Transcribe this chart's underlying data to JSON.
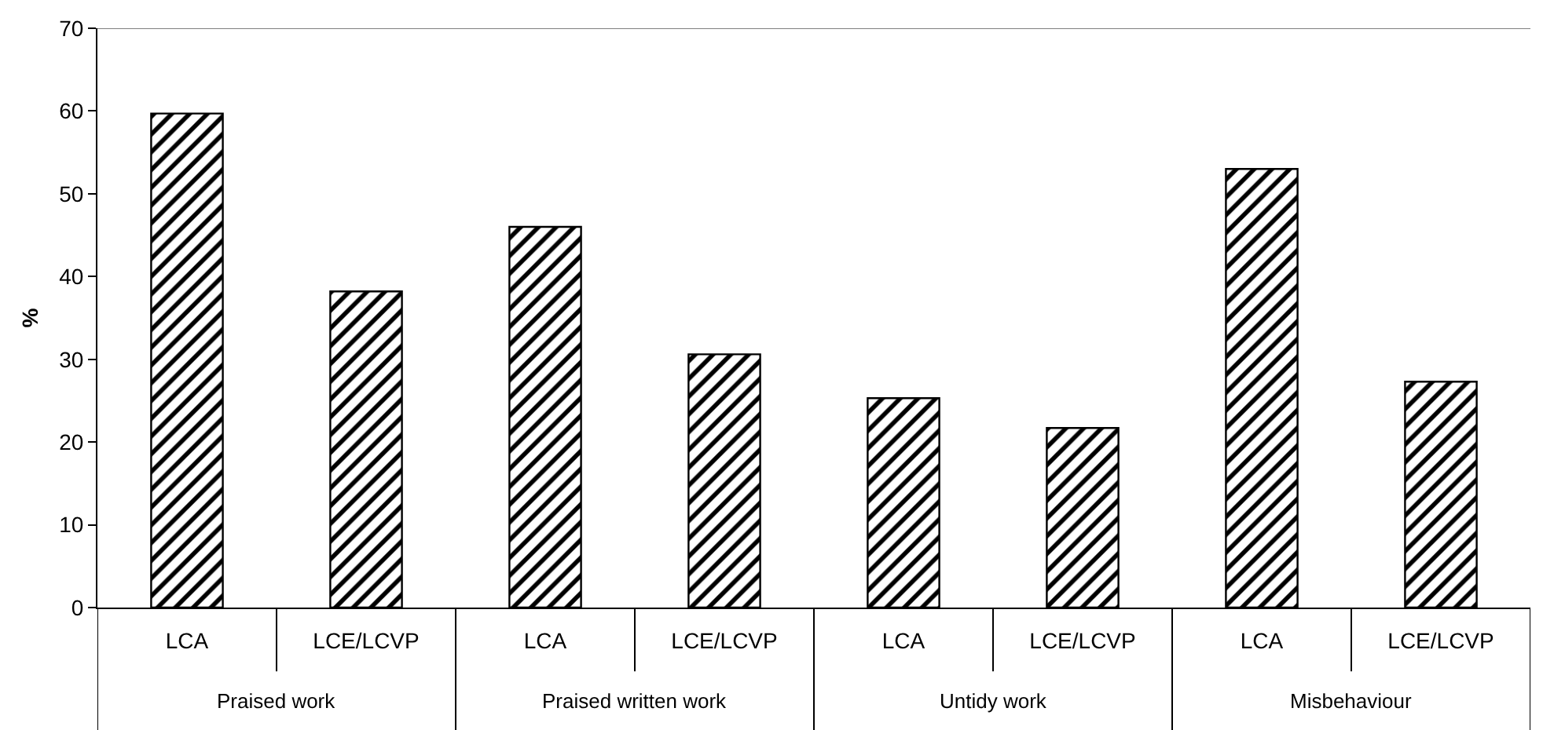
{
  "chart_data": {
    "type": "bar",
    "ylabel": "%",
    "categories": [
      "LCA",
      "LCE/LCVP",
      "LCA",
      "LCE/LCVP",
      "LCA",
      "LCE/LCVP",
      "LCA",
      "LCE/LCVP"
    ],
    "values": [
      59.7,
      38.2,
      46.0,
      30.6,
      25.3,
      21.7,
      53.0,
      27.3
    ],
    "color": "#000000",
    "ylim": [
      0,
      70
    ],
    "yticks": [
      0,
      10,
      20,
      30,
      40,
      50,
      60,
      70
    ],
    "annotations": [
      "Praised work",
      "Praised written work",
      "Untidy work",
      "Misbehaviour"
    ]
  }
}
